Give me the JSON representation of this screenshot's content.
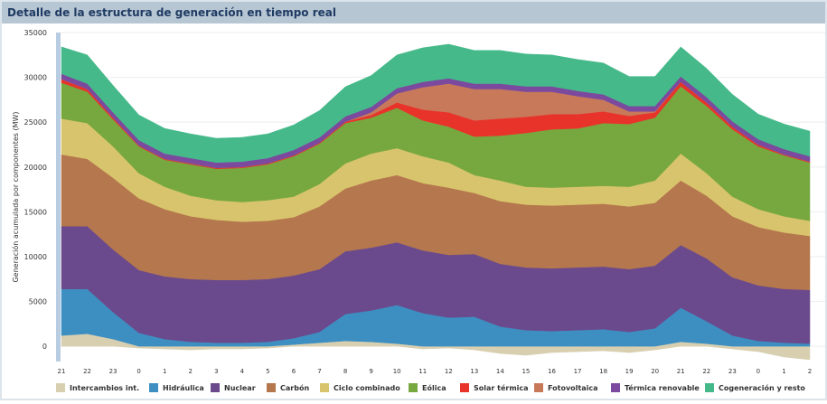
{
  "chart_data": {
    "type": "stacked-area",
    "title": "Detalle de la estructura de generación en tiempo real",
    "y_label": "Generación acumulada por componentes (MW)",
    "categories": [
      "21",
      "22",
      "23",
      "0",
      "1",
      "2",
      "3",
      "4",
      "5",
      "6",
      "7",
      "8",
      "9",
      "10",
      "11",
      "12",
      "13",
      "14",
      "15",
      "16",
      "17",
      "18",
      "19",
      "20",
      "21",
      "22",
      "23",
      "0",
      "1",
      "2"
    ],
    "ylim": [
      -1700,
      35000
    ],
    "yticks": [
      0,
      5000,
      10000,
      15000,
      20000,
      25000,
      30000,
      35000
    ],
    "grid": true,
    "series": [
      {
        "name": "Intercambios int.",
        "color": "#d8cfb0",
        "values": [
          1200,
          1400,
          800,
          -200,
          -300,
          -400,
          -300,
          -300,
          -200,
          200,
          400,
          600,
          500,
          300,
          -300,
          -200,
          -400,
          -800,
          -1000,
          -700,
          -600,
          -500,
          -700,
          -400,
          500,
          300,
          -300,
          -600,
          -1200,
          -1500
        ]
      },
      {
        "name": "Hidráulica",
        "color": "#3d8fc2",
        "values": [
          5200,
          5000,
          3000,
          1500,
          800,
          500,
          400,
          400,
          500,
          700,
          1200,
          3000,
          3500,
          4300,
          3700,
          3200,
          3300,
          2200,
          1800,
          1700,
          1800,
          1900,
          1600,
          2000,
          3800,
          2500,
          1200,
          600,
          400,
          300
        ]
      },
      {
        "name": "Nuclear",
        "color": "#6a4a8c",
        "values": [
          7000,
          7000,
          7000,
          7000,
          7000,
          7000,
          7000,
          7000,
          7000,
          7000,
          7000,
          7000,
          7000,
          7000,
          7000,
          7000,
          7000,
          7000,
          7000,
          7000,
          7000,
          7000,
          7000,
          7000,
          7000,
          7000,
          6500,
          6200,
          6000,
          6000
        ]
      },
      {
        "name": "Carbón",
        "color": "#b5774d",
        "values": [
          8000,
          7500,
          8000,
          8000,
          7500,
          7000,
          6700,
          6500,
          6500,
          6500,
          7000,
          7000,
          7500,
          7500,
          7500,
          7500,
          6800,
          7000,
          7000,
          7000,
          7000,
          7000,
          7000,
          7000,
          7200,
          7000,
          6800,
          6500,
          6300,
          6000
        ]
      },
      {
        "name": "Ciclo combinado",
        "color": "#d8c46c",
        "values": [
          4000,
          4000,
          3500,
          2800,
          2500,
          2300,
          2200,
          2200,
          2300,
          2300,
          2500,
          2800,
          3000,
          3000,
          3000,
          2800,
          2000,
          2300,
          2000,
          2000,
          2000,
          2000,
          2200,
          2500,
          3000,
          2500,
          2200,
          2000,
          1800,
          1700
        ]
      },
      {
        "name": "Eólica",
        "color": "#77a83f",
        "values": [
          4000,
          3500,
          3000,
          3000,
          3000,
          3500,
          3500,
          3800,
          4000,
          4500,
          4500,
          4500,
          4000,
          4500,
          4000,
          4000,
          4300,
          5000,
          6000,
          6500,
          6500,
          7000,
          7000,
          7000,
          7500,
          7500,
          7500,
          7000,
          6800,
          6500
        ]
      },
      {
        "name": "Solar térmica",
        "color": "#e8332b",
        "values": [
          400,
          300,
          200,
          100,
          100,
          100,
          100,
          100,
          100,
          100,
          100,
          150,
          300,
          600,
          1200,
          1600,
          1800,
          1900,
          1800,
          1700,
          1600,
          1300,
          900,
          600,
          500,
          400,
          300,
          200,
          100,
          100
        ]
      },
      {
        "name": "Fotovoltaica",
        "color": "#c8795a",
        "values": [
          0,
          0,
          0,
          0,
          0,
          0,
          0,
          0,
          0,
          0,
          0,
          0,
          300,
          1000,
          2500,
          3200,
          3500,
          3300,
          2800,
          2500,
          2000,
          1300,
          500,
          100,
          0,
          0,
          0,
          0,
          0,
          0
        ]
      },
      {
        "name": "Térmica renovable",
        "color": "#7b4a9e",
        "values": [
          600,
          600,
          600,
          600,
          600,
          600,
          600,
          600,
          600,
          600,
          600,
          600,
          600,
          600,
          600,
          600,
          600,
          600,
          600,
          600,
          600,
          600,
          600,
          600,
          600,
          600,
          600,
          600,
          600,
          600
        ]
      },
      {
        "name": "Cogeneración y resto",
        "color": "#45b98a",
        "values": [
          3000,
          3200,
          3000,
          2800,
          2800,
          2700,
          2700,
          2700,
          2700,
          2800,
          3000,
          3300,
          3500,
          3700,
          3800,
          3800,
          3700,
          3700,
          3600,
          3500,
          3500,
          3500,
          3300,
          3300,
          3300,
          3200,
          3000,
          2800,
          2800,
          2800
        ]
      }
    ]
  }
}
